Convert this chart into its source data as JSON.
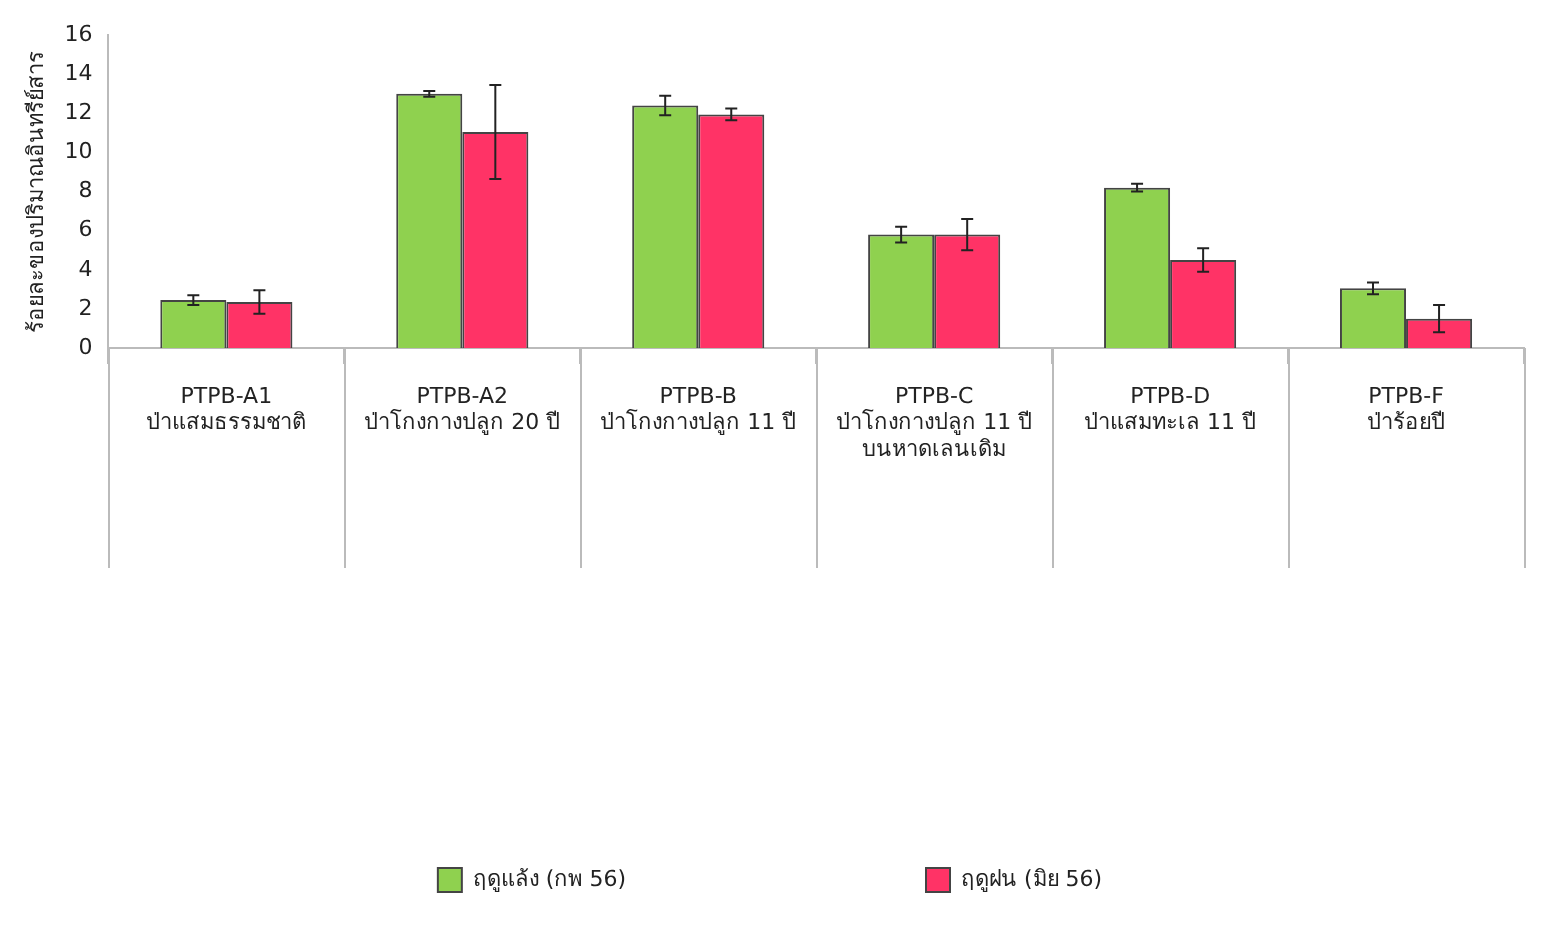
{
  "chart_data": {
    "type": "bar",
    "ylabel": "ร้อยละของปริมาณอินทรีย์สาร",
    "categories": [
      "PTPB-A1\nป่าแสมธรรมชาติ",
      "PTPB-A2\nป่าโกงกางปลูก 20 ปี",
      "PTPB-B\nป่าโกงกางปลูก 11 ปี",
      "PTPB-C\nป่าโกงกางปลูก 11 ปี\nบนหาดเลนเดิม",
      "PTPB-D\nป่าแสมทะเล 11 ปี",
      "PTPB-F\nป่าร้อยปี"
    ],
    "series": [
      {
        "name": "ฤดูแล้ง (กพ 56)",
        "color": "#8fd14f",
        "values": [
          2.45,
          13.0,
          12.4,
          5.8,
          8.2,
          3.05
        ],
        "errors": [
          0.25,
          0.15,
          0.5,
          0.4,
          0.2,
          0.3
        ]
      },
      {
        "name": "ฤดูฝน (มิย 56)",
        "color": "#ff3366",
        "values": [
          2.35,
          11.05,
          11.95,
          5.8,
          4.5,
          1.5
        ],
        "errors": [
          0.6,
          2.4,
          0.3,
          0.8,
          0.6,
          0.7
        ]
      }
    ],
    "ylim": [
      0,
      16
    ],
    "yticks": [
      0,
      2,
      4,
      6,
      8,
      10,
      12,
      14,
      16
    ],
    "grid": false,
    "legend": "bottom"
  }
}
